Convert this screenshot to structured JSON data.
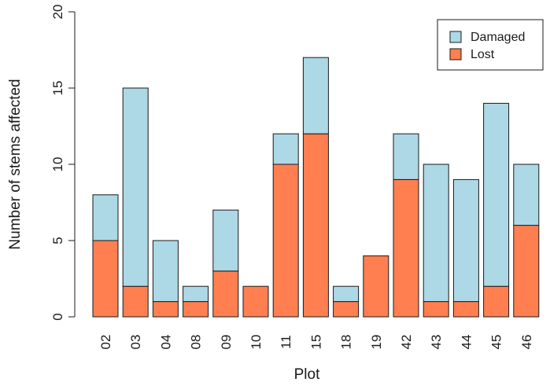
{
  "chart_data": {
    "type": "bar",
    "stacked": true,
    "categories": [
      "02",
      "03",
      "04",
      "08",
      "09",
      "10",
      "11",
      "15",
      "18",
      "19",
      "42",
      "43",
      "44",
      "45",
      "46"
    ],
    "series": [
      {
        "name": "Lost",
        "values": [
          5,
          2,
          1,
          1,
          3,
          2,
          10,
          12,
          1,
          4,
          9,
          1,
          1,
          2,
          6
        ],
        "color": "#FF7F50"
      },
      {
        "name": "Damaged",
        "values": [
          3,
          13,
          4,
          1,
          4,
          0,
          2,
          5,
          1,
          0,
          3,
          9,
          8,
          12,
          4
        ],
        "color": "#ADD8E6"
      }
    ],
    "xlabel": "Plot",
    "ylabel": "Number of stems affected",
    "ylim": [
      0,
      20
    ],
    "yticks": [
      "0",
      "5",
      "10",
      "15",
      "20"
    ],
    "legend": {
      "position": "top-right",
      "entries": [
        {
          "label": "Damaged",
          "color": "#ADD8E6"
        },
        {
          "label": "Lost",
          "color": "#FF7F50"
        }
      ]
    },
    "grid": false
  }
}
